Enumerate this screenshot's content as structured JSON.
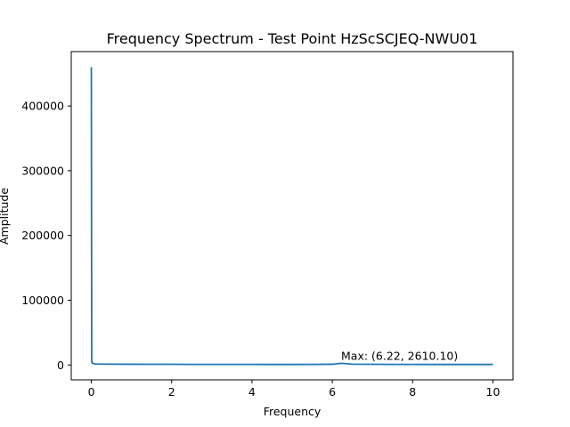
{
  "chart_data": {
    "type": "line",
    "title": "Frequency Spectrum - Test Point HzScSCJEQ-NWU01",
    "xlabel": "Frequency",
    "ylabel": "Amplitude",
    "xlim": [
      -0.5,
      10.5
    ],
    "ylim": [
      -23000,
      484000
    ],
    "x_ticks": [
      0,
      2,
      4,
      6,
      8,
      10
    ],
    "x_tick_labels": [
      "0",
      "2",
      "4",
      "6",
      "8",
      "10"
    ],
    "y_ticks": [
      0,
      100000,
      200000,
      300000,
      400000
    ],
    "y_tick_labels": [
      "0",
      "100000",
      "200000",
      "300000",
      "400000"
    ],
    "grid": false,
    "series": [
      {
        "color": "#1f77b4",
        "x": [
          0,
          0.01,
          0.02,
          0.04,
          0.1,
          0.2,
          0.5,
          1,
          1.5,
          2,
          2.5,
          3,
          3.5,
          4,
          4.5,
          5,
          5.5,
          6,
          6.22,
          6.5,
          7,
          7.5,
          8,
          8.5,
          9,
          9.5,
          10
        ],
        "y": [
          460000,
          6000,
          3000,
          2200,
          1600,
          1400,
          1200,
          1100,
          1000,
          1000,
          900,
          900,
          900,
          900,
          800,
          800,
          900,
          1100,
          2610.1,
          1200,
          1000,
          900,
          900,
          800,
          800,
          800,
          800
        ]
      }
    ],
    "annotations": [
      {
        "text": "Max: (6.22, 2610.10)",
        "x": 6.22,
        "y": 2610.1
      }
    ]
  }
}
